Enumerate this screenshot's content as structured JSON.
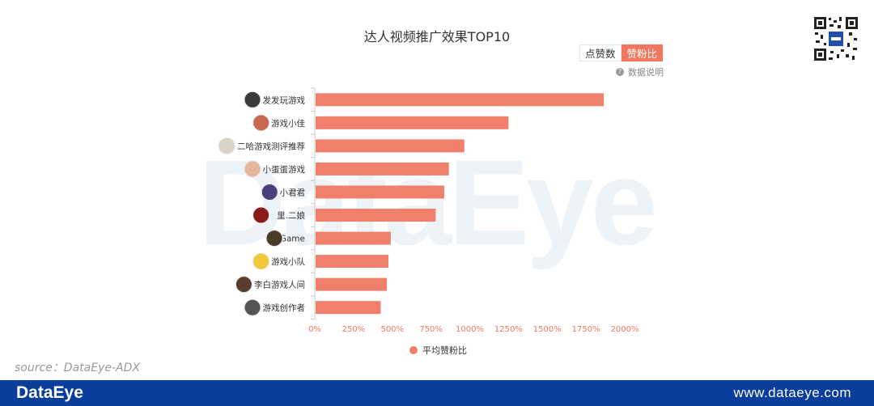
{
  "watermark": "DataEye",
  "toggle": {
    "option1": "点赞数",
    "option2": "赞粉比",
    "active": "赞粉比"
  },
  "data_note": "数据说明",
  "source": "source：DataEye-ADX",
  "footer": {
    "logo": "DataEye",
    "url": "www.dataeye.com"
  },
  "colors": {
    "bar": "#f0806c",
    "accent": "#f0775d",
    "footer": "#0b3d9c"
  },
  "chart_data": {
    "type": "bar",
    "orientation": "horizontal",
    "title": "达人视频推广效果TOP10",
    "categories": [
      "发发玩游戏",
      "游戏小佳",
      "二哈游戏测评推荐",
      "小蛋蛋游戏",
      "小君君",
      "里.二娘",
      "Game",
      "游戏小队",
      "李白游戏人间",
      "游戏创作者"
    ],
    "series": [
      {
        "name": "平均赞粉比",
        "values": [
          1865,
          1250,
          965,
          865,
          835,
          780,
          490,
          475,
          465,
          425
        ]
      }
    ],
    "xlim": [
      0,
      2000
    ],
    "ticks": [
      0,
      250,
      500,
      750,
      1000,
      1250,
      1500,
      1750,
      2000
    ],
    "tick_labels": [
      "0%",
      "250%",
      "500%",
      "750%",
      "1000%",
      "1250%",
      "1500%",
      "1750%",
      "2000%"
    ],
    "grid": false,
    "legend_position": "bottom"
  }
}
